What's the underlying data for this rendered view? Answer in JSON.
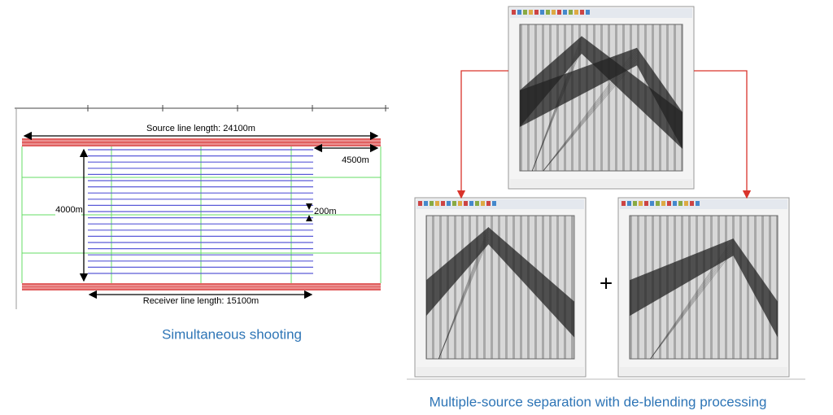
{
  "left_panel": {
    "source_line": "Source line length: 24100m",
    "offset": "4500m",
    "height": "4000m",
    "spacing": "200m",
    "receiver_line": "Receiver line length: 15100m",
    "caption": "Simultaneous shooting"
  },
  "right_panel": {
    "operator": "+",
    "caption": "Multiple-source separation with de-blending processing"
  }
}
